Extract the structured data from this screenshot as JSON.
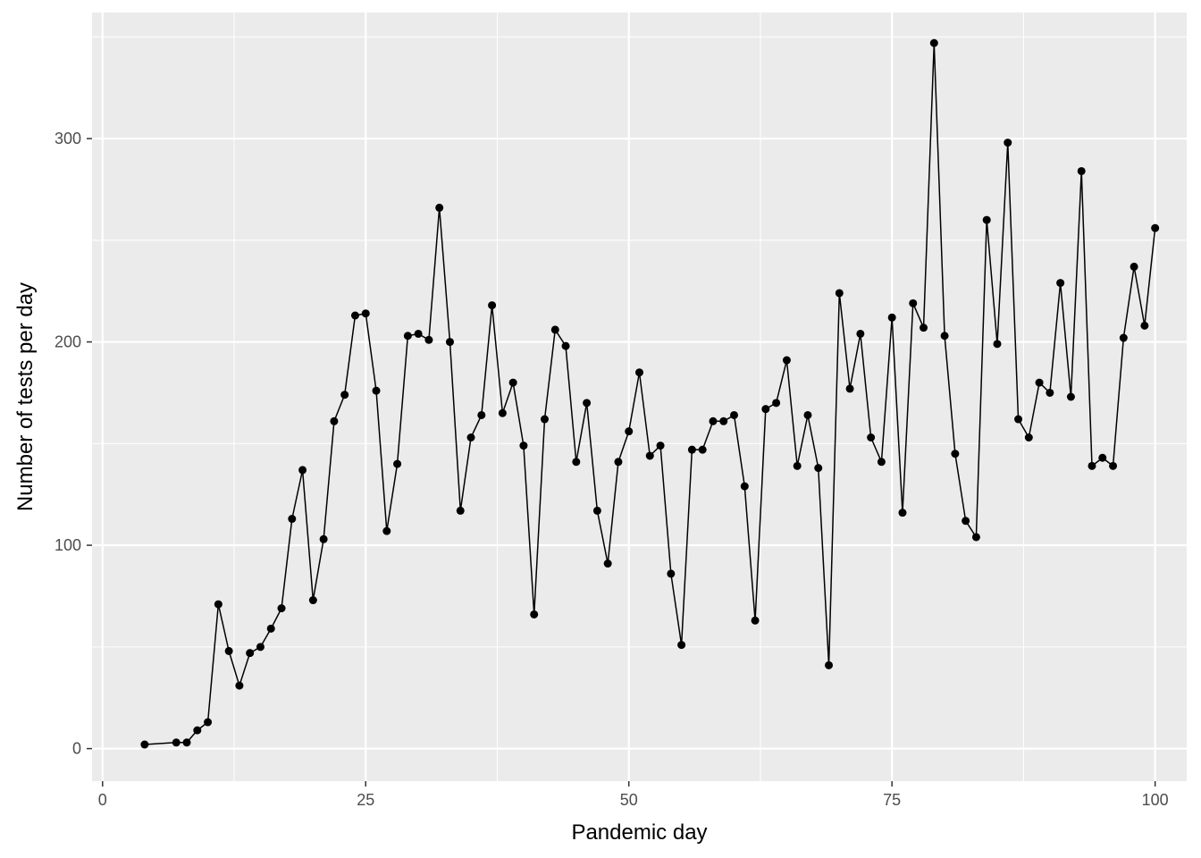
{
  "chart_data": {
    "type": "line",
    "title": "",
    "xlabel": "Pandemic day",
    "ylabel": "Number of tests per day",
    "xlim": [
      -1,
      103
    ],
    "ylim": [
      -16,
      362
    ],
    "x_ticks": [
      0,
      25,
      50,
      75,
      100
    ],
    "y_ticks": [
      0,
      100,
      200,
      300
    ],
    "grid": true,
    "legend": "none",
    "colors": {
      "panel_background": "#ebebeb",
      "grid_major": "#ffffff",
      "line": "#000000",
      "point": "#000000"
    },
    "series": [
      {
        "x": [
          4,
          7,
          8,
          9,
          10,
          11,
          12,
          13,
          14,
          15,
          16,
          17,
          18,
          19,
          20,
          21,
          22,
          23,
          24,
          25,
          26,
          27,
          28,
          29,
          30,
          31,
          32,
          33,
          34,
          35,
          36,
          37,
          38,
          39,
          40,
          41,
          42,
          43,
          44,
          45,
          46,
          47,
          48,
          49,
          50,
          51,
          52,
          53,
          54,
          55,
          56,
          57,
          58,
          59,
          60,
          61,
          62,
          63,
          64,
          65,
          66,
          67,
          68,
          69,
          70,
          71,
          72,
          73,
          74,
          75,
          76,
          77,
          78,
          79,
          80,
          81,
          82,
          83,
          84,
          85,
          86,
          87,
          88,
          89,
          90,
          91,
          92,
          93,
          94,
          95,
          96,
          97,
          98,
          99,
          100
        ],
        "y": [
          2,
          3,
          3,
          9,
          13,
          71,
          48,
          31,
          47,
          50,
          59,
          69,
          113,
          137,
          73,
          103,
          161,
          174,
          213,
          214,
          176,
          107,
          140,
          203,
          204,
          201,
          266,
          200,
          117,
          153,
          164,
          218,
          165,
          180,
          149,
          66,
          162,
          206,
          198,
          141,
          170,
          117,
          91,
          141,
          156,
          185,
          144,
          149,
          86,
          51,
          147,
          147,
          161,
          161,
          164,
          129,
          63,
          167,
          170,
          191,
          139,
          164,
          138,
          41,
          224,
          177,
          204,
          153,
          141,
          212,
          116,
          219,
          207,
          347,
          203,
          145,
          112,
          104,
          260,
          199,
          298,
          162,
          153,
          180,
          175,
          229,
          173,
          284,
          139,
          143,
          139,
          202,
          237,
          208,
          256
        ]
      }
    ]
  }
}
